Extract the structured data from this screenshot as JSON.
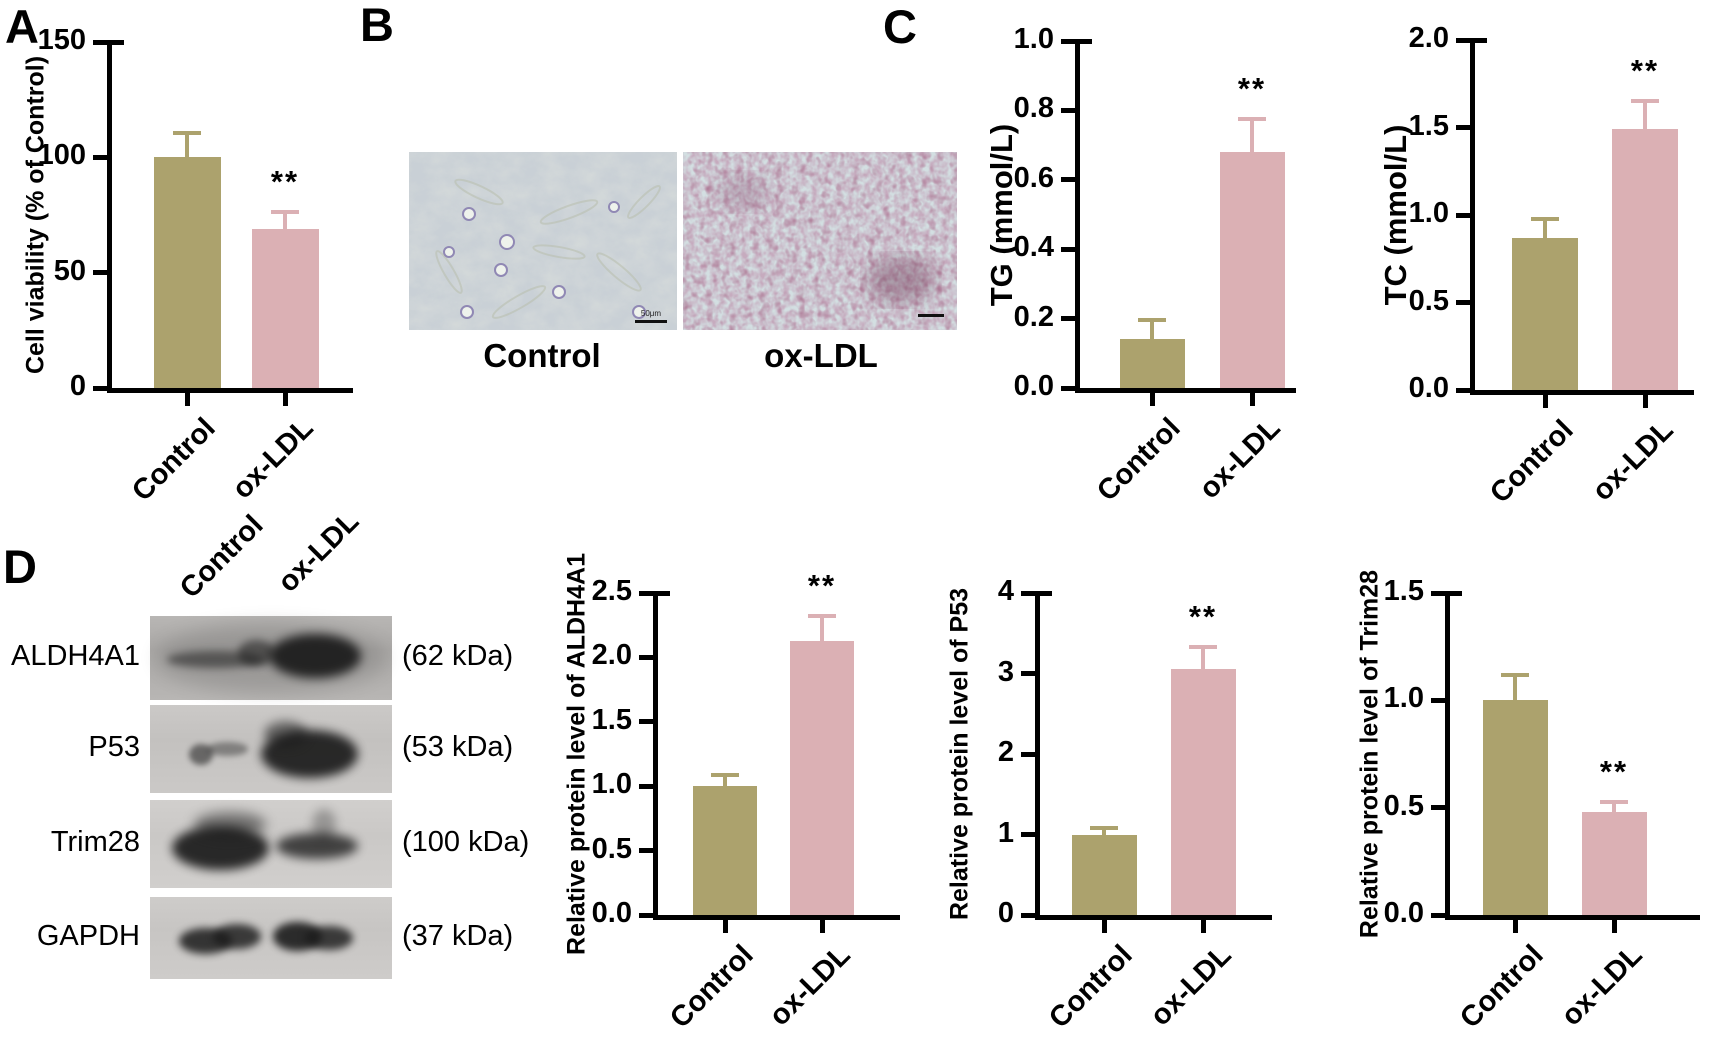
{
  "figure": {
    "panels": [
      {
        "id": "A",
        "label": "A"
      },
      {
        "id": "B",
        "label": "B"
      },
      {
        "id": "C",
        "label": "C"
      },
      {
        "id": "D",
        "label": "D"
      }
    ]
  },
  "colors": {
    "control_bar": "#ACA26D",
    "oxldl_bar": "#DBB0B4",
    "axis": "#000000",
    "band": "#1b1b1b"
  },
  "panelB": {
    "images": [
      {
        "caption": "Control",
        "scale_bar_text": "50μm"
      },
      {
        "caption": "ox-LDL",
        "scale_bar_text": ""
      }
    ]
  },
  "panelD_blot": {
    "lane_labels": [
      "Control",
      "ox-LDL"
    ],
    "rows": [
      {
        "protein": "ALDH4A1",
        "mw_label": "(62 kDa)"
      },
      {
        "protein": "P53",
        "mw_label": "(53 kDa)"
      },
      {
        "protein": "Trim28",
        "mw_label": "(100 kDa)"
      },
      {
        "protein": "GAPDH",
        "mw_label": "(37 kDa)"
      }
    ]
  },
  "chart_data": [
    {
      "id": "viability",
      "panel": "A",
      "type": "bar",
      "ylabel": "Cell viability (% of Control)",
      "categories": [
        "Control",
        "ox-LDL"
      ],
      "values": [
        100,
        69
      ],
      "errors_up": [
        10.5,
        7.5
      ],
      "sig": [
        "",
        "**"
      ],
      "ylim": [
        0,
        150
      ],
      "ytick_step": 50,
      "tick_decimals": 0
    },
    {
      "id": "tg",
      "panel": "C",
      "type": "bar",
      "ylabel": "TG (mmol/L)",
      "categories": [
        "Control",
        "ox-LDL"
      ],
      "values": [
        0.14,
        0.68
      ],
      "errors_up": [
        0.055,
        0.095
      ],
      "sig": [
        "",
        "**"
      ],
      "ylim": [
        0,
        1.0
      ],
      "ytick_step": 0.2,
      "tick_decimals": 1
    },
    {
      "id": "tc",
      "panel": "C",
      "type": "bar",
      "ylabel": "TC (mmol/L)",
      "categories": [
        "Control",
        "ox-LDL"
      ],
      "values": [
        0.87,
        1.49
      ],
      "errors_up": [
        0.11,
        0.16
      ],
      "sig": [
        "",
        "**"
      ],
      "ylim": [
        0,
        2.0
      ],
      "ytick_step": 0.5,
      "tick_decimals": 1
    },
    {
      "id": "aldh4a1",
      "panel": "D",
      "type": "bar",
      "ylabel": "Relative protein level of ALDH4A1",
      "categories": [
        "Control",
        "ox-LDL"
      ],
      "values": [
        1.0,
        2.13
      ],
      "errors_up": [
        0.09,
        0.19
      ],
      "sig": [
        "",
        "**"
      ],
      "ylim": [
        0,
        2.5
      ],
      "ytick_step": 0.5,
      "tick_decimals": 1
    },
    {
      "id": "p53",
      "panel": "D",
      "type": "bar",
      "ylabel": "Relative protein level of P53",
      "categories": [
        "Control",
        "ox-LDL"
      ],
      "values": [
        1.0,
        3.05
      ],
      "errors_up": [
        0.08,
        0.28
      ],
      "sig": [
        "",
        "**"
      ],
      "ylim": [
        0,
        4
      ],
      "ytick_step": 1,
      "tick_decimals": 0
    },
    {
      "id": "trim28",
      "panel": "D",
      "type": "bar",
      "ylabel": "Relative protein level of Trim28",
      "categories": [
        "Control",
        "ox-LDL"
      ],
      "values": [
        1.0,
        0.48
      ],
      "errors_up": [
        0.12,
        0.045
      ],
      "sig": [
        "",
        "**"
      ],
      "ylim": [
        0,
        1.5
      ],
      "ytick_step": 0.5,
      "tick_decimals": 1
    }
  ]
}
